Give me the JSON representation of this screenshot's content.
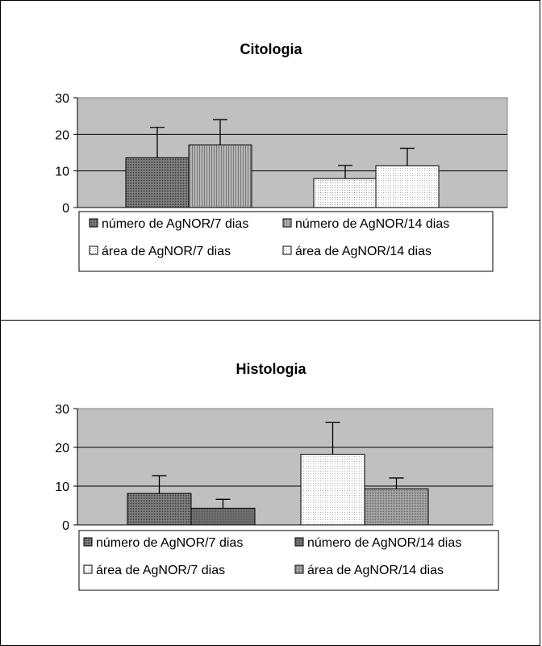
{
  "chart_data": [
    {
      "type": "bar",
      "title": "Citologia",
      "xlabel": "",
      "ylabel": "",
      "ylim": [
        0,
        30
      ],
      "yticks": [
        0,
        10,
        20,
        30
      ],
      "grid": true,
      "legend_position": "bottom",
      "plot_background": "#c0c0c0",
      "groups": 2,
      "series": [
        {
          "name": "número de AgNOR/7 dias",
          "pattern": "dark-dots",
          "group": 0,
          "value": 13.6,
          "error": 8.3
        },
        {
          "name": "número de AgNOR/14 dias",
          "pattern": "vertical-lines",
          "group": 0,
          "value": 17.1,
          "error": 6.9
        },
        {
          "name": "área de AgNOR/7 dias",
          "pattern": "light-dots",
          "group": 1,
          "value": 7.9,
          "error": 3.6
        },
        {
          "name": "área de AgNOR/14 dias",
          "pattern": "white-dots",
          "group": 1,
          "value": 11.4,
          "error": 4.8
        }
      ]
    },
    {
      "type": "bar",
      "title": "Histologia",
      "xlabel": "",
      "ylabel": "",
      "ylim": [
        0,
        30
      ],
      "yticks": [
        0,
        10,
        20,
        30
      ],
      "grid": true,
      "legend_position": "bottom",
      "plot_background": "#c0c0c0",
      "groups": 2,
      "series": [
        {
          "name": "número de AgNOR/7 dias",
          "pattern": "dark-dots",
          "group": 0,
          "value": 8.1,
          "error": 4.6
        },
        {
          "name": "número de AgNOR/14 dias",
          "pattern": "dark-gray",
          "group": 0,
          "value": 4.3,
          "error": 2.3
        },
        {
          "name": "área de AgNOR/7 dias",
          "pattern": "white-dots",
          "group": 1,
          "value": 18.2,
          "error": 8.2
        },
        {
          "name": "área de AgNOR/14 dias",
          "pattern": "mid-dots",
          "group": 1,
          "value": 9.3,
          "error": 2.8
        }
      ]
    }
  ]
}
